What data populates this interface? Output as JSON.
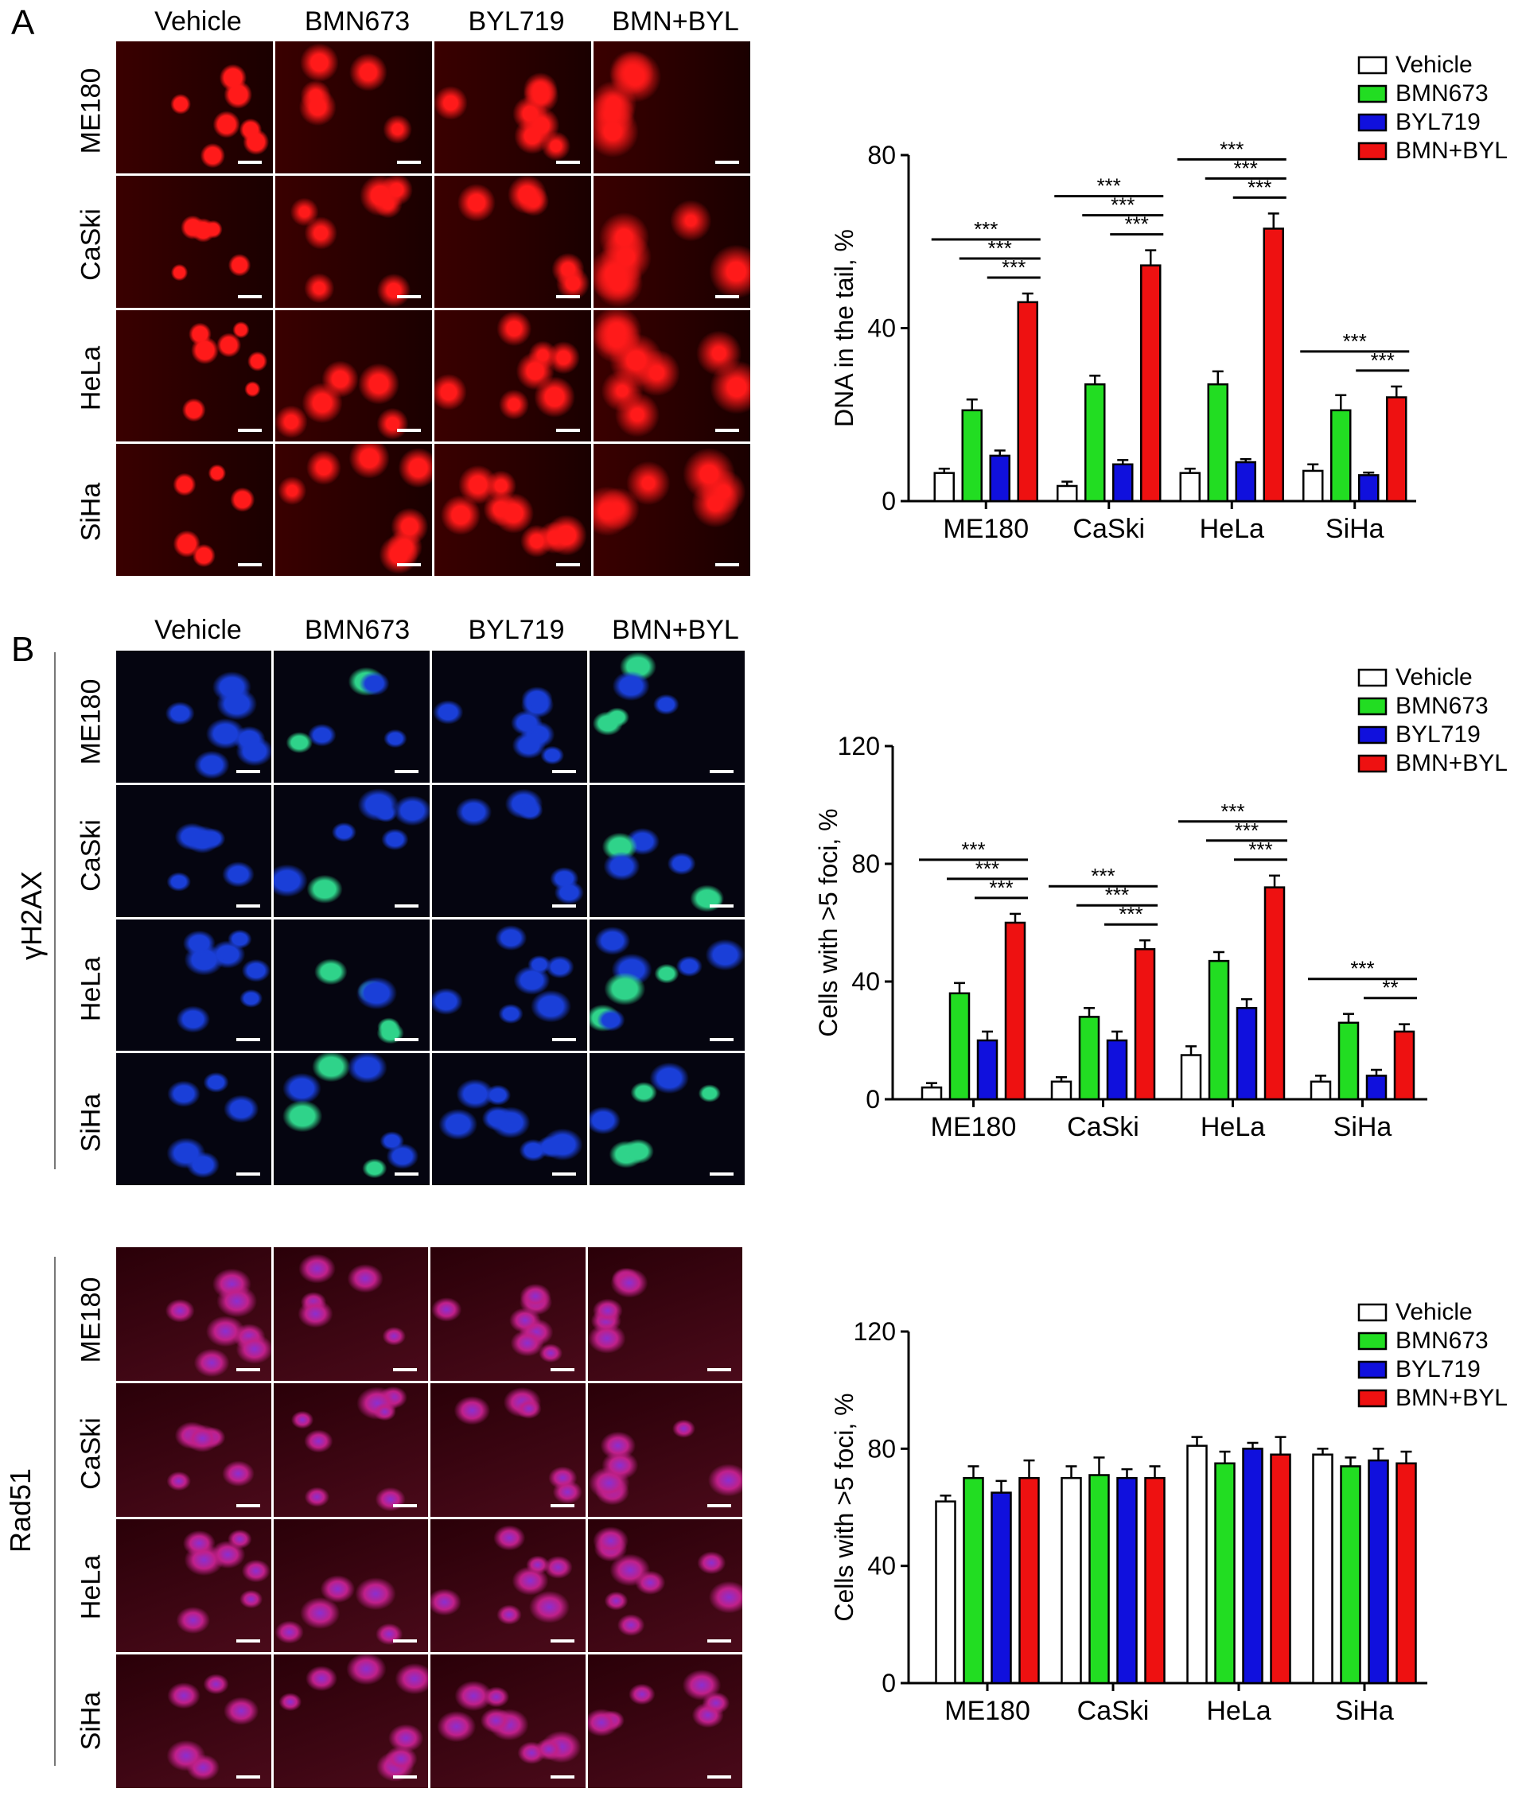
{
  "columns": [
    "Vehicle",
    "BMN673",
    "BYL719",
    "BMN+BYL"
  ],
  "rows": [
    "ME180",
    "CaSki",
    "HeLa",
    "SiHa"
  ],
  "panels": {
    "A": {
      "letter": "A"
    },
    "B": {
      "letter": "B",
      "label_gamma": "γH2AX",
      "label_rad51": "Rad51"
    }
  },
  "colors": {
    "Vehicle": "#ffffff",
    "BMN673": "#22dd22",
    "BYL719": "#1010dd",
    "BMN+BYL": "#ee1111",
    "comet_bg": "#3a0000",
    "comet_cell": "#ff1a1a",
    "h2ax_bg": "#050510",
    "h2ax_cell": "#1a3fd8",
    "h2ax_foci": "#2fd38a",
    "rad51_bg": "#2a0008",
    "rad51_cell": "#c0208a",
    "rad51_nuc": "#8a2fd0"
  },
  "chart_data": [
    {
      "type": "bar",
      "categories": [
        "ME180",
        "CaSki",
        "HeLa",
        "SiHa"
      ],
      "ylabel": "DNA in the tail, %",
      "ylim": [
        0,
        80
      ],
      "yticks": [
        0,
        40,
        80
      ],
      "legend": "top-right",
      "series": [
        {
          "name": "Vehicle",
          "values": [
            6.5,
            3.5,
            6.5,
            7
          ],
          "errors": [
            1,
            1,
            1,
            1.5
          ]
        },
        {
          "name": "BMN673",
          "values": [
            21,
            27,
            27,
            21
          ],
          "errors": [
            2.5,
            2,
            3,
            3.5
          ]
        },
        {
          "name": "BYL719",
          "values": [
            10.5,
            8.5,
            9,
            6
          ],
          "errors": [
            1.2,
            1,
            0.7,
            0.6
          ]
        },
        {
          "name": "BMN+BYL",
          "values": [
            46,
            54.5,
            63,
            24
          ],
          "errors": [
            2,
            3.5,
            3.5,
            2.5
          ]
        }
      ],
      "significance": [
        {
          "category": 0,
          "from": 0,
          "to": 3,
          "label": "***"
        },
        {
          "category": 0,
          "from": 1,
          "to": 3,
          "label": "***"
        },
        {
          "category": 0,
          "from": 2,
          "to": 3,
          "label": "***"
        },
        {
          "category": 1,
          "from": 0,
          "to": 3,
          "label": "***"
        },
        {
          "category": 1,
          "from": 1,
          "to": 3,
          "label": "***"
        },
        {
          "category": 1,
          "from": 2,
          "to": 3,
          "label": "***"
        },
        {
          "category": 2,
          "from": 0,
          "to": 3,
          "label": "***"
        },
        {
          "category": 2,
          "from": 1,
          "to": 3,
          "label": "***"
        },
        {
          "category": 2,
          "from": 2,
          "to": 3,
          "label": "***"
        },
        {
          "category": 3,
          "from": 0,
          "to": 3,
          "label": "***"
        },
        {
          "category": 3,
          "from": 2,
          "to": 3,
          "label": "***"
        }
      ]
    },
    {
      "type": "bar",
      "categories": [
        "ME180",
        "CaSki",
        "HeLa",
        "SiHa"
      ],
      "ylabel": "Cells with >5 foci, %",
      "ylim": [
        0,
        120
      ],
      "yticks": [
        0,
        40,
        80,
        120
      ],
      "legend": "top-right",
      "series": [
        {
          "name": "Vehicle",
          "values": [
            4,
            6,
            15,
            6
          ],
          "errors": [
            1.5,
            1.5,
            3,
            2
          ]
        },
        {
          "name": "BMN673",
          "values": [
            36,
            28,
            47,
            26
          ],
          "errors": [
            3.5,
            3,
            3,
            3
          ]
        },
        {
          "name": "BYL719",
          "values": [
            20,
            20,
            31,
            8
          ],
          "errors": [
            3,
            3,
            3,
            2
          ]
        },
        {
          "name": "BMN+BYL",
          "values": [
            60,
            51,
            72,
            23
          ],
          "errors": [
            3,
            3,
            4,
            2.5
          ]
        }
      ],
      "significance": [
        {
          "category": 0,
          "from": 0,
          "to": 3,
          "label": "***"
        },
        {
          "category": 0,
          "from": 1,
          "to": 3,
          "label": "***"
        },
        {
          "category": 0,
          "from": 2,
          "to": 3,
          "label": "***"
        },
        {
          "category": 1,
          "from": 0,
          "to": 3,
          "label": "***"
        },
        {
          "category": 1,
          "from": 1,
          "to": 3,
          "label": "***"
        },
        {
          "category": 1,
          "from": 2,
          "to": 3,
          "label": "***"
        },
        {
          "category": 2,
          "from": 0,
          "to": 3,
          "label": "***"
        },
        {
          "category": 2,
          "from": 1,
          "to": 3,
          "label": "***"
        },
        {
          "category": 2,
          "from": 2,
          "to": 3,
          "label": "***"
        },
        {
          "category": 3,
          "from": 0,
          "to": 3,
          "label": "***"
        },
        {
          "category": 3,
          "from": 2,
          "to": 3,
          "label": "**"
        }
      ]
    },
    {
      "type": "bar",
      "categories": [
        "ME180",
        "CaSki",
        "HeLa",
        "SiHa"
      ],
      "ylabel": "Cells with >5 foci, %",
      "ylim": [
        0,
        120
      ],
      "yticks": [
        0,
        40,
        80,
        120
      ],
      "legend": "top-right",
      "series": [
        {
          "name": "Vehicle",
          "values": [
            62,
            70,
            81,
            78
          ],
          "errors": [
            2,
            4,
            3,
            2
          ]
        },
        {
          "name": "BMN673",
          "values": [
            70,
            71,
            75,
            74
          ],
          "errors": [
            4,
            6,
            4,
            3
          ]
        },
        {
          "name": "BYL719",
          "values": [
            65,
            70,
            80,
            76
          ],
          "errors": [
            4,
            3,
            2,
            4
          ]
        },
        {
          "name": "BMN+BYL",
          "values": [
            70,
            70,
            78,
            75
          ],
          "errors": [
            6,
            4,
            6,
            4
          ]
        }
      ],
      "significance": []
    }
  ]
}
